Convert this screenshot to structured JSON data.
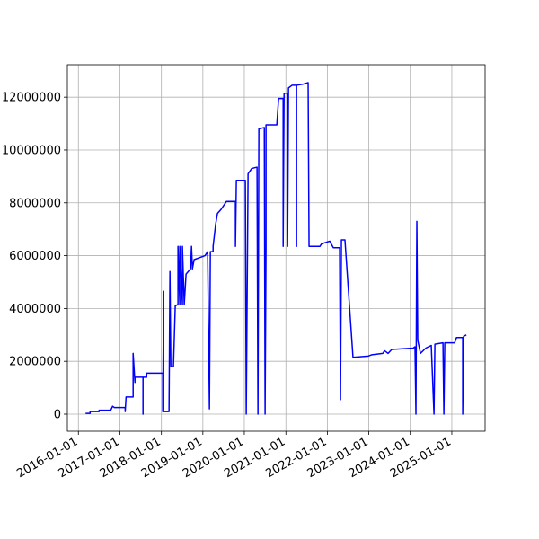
{
  "chart_data": {
    "type": "line",
    "color": "#0000ff",
    "grid": true,
    "xlim": [
      "2015-09-26",
      "2025-10-21"
    ],
    "xticks": [
      "2016-01-01",
      "2017-01-01",
      "2018-01-01",
      "2019-01-01",
      "2020-01-01",
      "2021-01-01",
      "2022-01-01",
      "2023-01-01",
      "2024-01-01",
      "2025-01-01"
    ],
    "ylim": [
      -646000,
      13230000
    ],
    "yticks": [
      0,
      2000000,
      4000000,
      6000000,
      8000000,
      10000000,
      12000000
    ],
    "x": [
      "2016-03-04",
      "2016-04-13",
      "2016-04-13",
      "2016-07-01",
      "2016-07-01",
      "2016-10-12",
      "2016-10-28",
      "2016-11-13",
      "2017-02-16",
      "2017-02-16",
      "2017-02-24",
      "2017-04-27",
      "2017-04-27",
      "2017-05-13",
      "2017-05-13",
      "2017-07-23",
      "2017-07-23",
      "2017-07-23",
      "2017-08-24",
      "2017-08-24",
      "2018-01-13",
      "2018-01-13",
      "2018-01-21",
      "2018-01-21",
      "2018-02-06",
      "2018-03-09",
      "2018-03-17",
      "2018-03-25",
      "2018-04-17",
      "2018-05-03",
      "2018-05-27",
      "2018-05-27",
      "2018-06-12",
      "2018-06-12",
      "2018-07-05",
      "2018-07-05",
      "2018-07-21",
      "2018-08-06",
      "2018-09-15",
      "2018-09-23",
      "2018-10-01",
      "2018-10-16",
      "2019-01-20",
      "2019-02-12",
      "2019-02-28",
      "2019-03-08",
      "2019-04-01",
      "2019-04-01",
      "2019-04-24",
      "2019-05-10",
      "2019-06-10",
      "2019-07-27",
      "2019-10-15",
      "2019-10-15",
      "2019-10-23",
      "2020-01-10",
      "2020-01-18",
      "2020-02-03",
      "2020-03-06",
      "2020-04-22",
      "2020-04-30",
      "2020-05-08",
      "2020-06-25",
      "2020-07-02",
      "2020-07-10",
      "2020-07-10",
      "2020-10-13",
      "2020-10-29",
      "2020-12-08",
      "2020-12-08",
      "2020-12-16",
      "2021-01-16",
      "2021-01-16",
      "2021-01-24",
      "2021-02-24",
      "2021-04-05",
      "2021-04-05",
      "2021-04-05",
      "2021-06-07",
      "2021-07-16",
      "2021-07-24",
      "2021-10-27",
      "2021-11-12",
      "2022-01-22",
      "2022-02-23",
      "2022-04-19",
      "2022-04-27",
      "2022-05-05",
      "2022-06-05",
      "2022-08-15",
      "2022-12-28",
      "2023-01-29",
      "2023-05-04",
      "2023-05-20",
      "2023-06-20",
      "2023-07-22",
      "2024-01-27",
      "2024-02-12",
      "2024-02-20",
      "2024-02-28",
      "2024-03-07",
      "2024-03-31",
      "2024-05-17",
      "2024-07-04",
      "2024-07-28",
      "2024-08-05",
      "2024-10-15",
      "2024-10-23",
      "2024-10-31",
      "2025-01-26",
      "2025-02-11",
      "2025-04-07",
      "2025-04-07",
      "2025-04-15",
      "2025-05-09"
    ],
    "values": [
      30000,
      30000,
      100000,
      100000,
      150000,
      150000,
      300000,
      250000,
      250000,
      100000,
      650000,
      650000,
      2300000,
      1200000,
      1400000,
      1400000,
      0,
      1400000,
      1400000,
      1550000,
      1550000,
      100000,
      4650000,
      100000,
      100000,
      100000,
      5400000,
      1800000,
      1800000,
      4100000,
      4150000,
      6350000,
      4150000,
      6350000,
      4150000,
      6350000,
      4150000,
      5300000,
      5500000,
      6350000,
      5500000,
      5850000,
      6000000,
      6150000,
      200000,
      6150000,
      6150000,
      6350000,
      7200000,
      7600000,
      7750000,
      8050000,
      8050000,
      6350000,
      8850000,
      8850000,
      0,
      9100000,
      9300000,
      9350000,
      0,
      10800000,
      10850000,
      0,
      6350000,
      10950000,
      10950000,
      11950000,
      11950000,
      6350000,
      12150000,
      12150000,
      6350000,
      12350000,
      12450000,
      12450000,
      6350000,
      12450000,
      12500000,
      12550000,
      6350000,
      6350000,
      6450000,
      6550000,
      6300000,
      6300000,
      550000,
      6600000,
      6600000,
      2150000,
      2200000,
      2250000,
      2300000,
      2400000,
      2300000,
      2450000,
      2500000,
      2550000,
      0,
      7300000,
      2800000,
      2300000,
      2500000,
      2600000,
      0,
      2650000,
      2700000,
      0,
      2700000,
      2700000,
      2900000,
      2900000,
      0,
      2950000,
      3000000
    ]
  }
}
